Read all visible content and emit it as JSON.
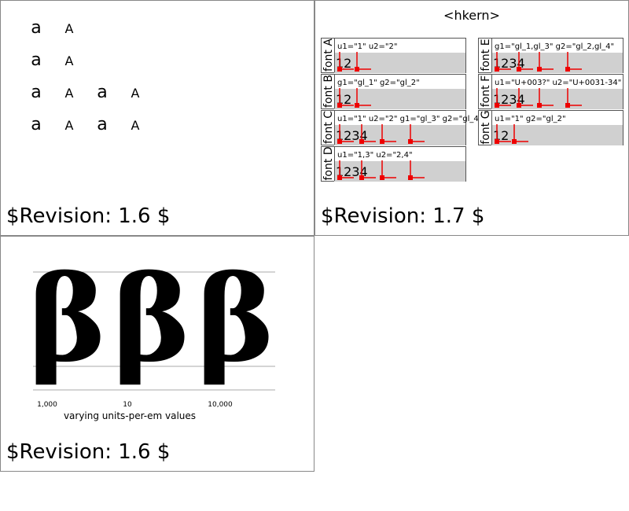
{
  "panels": [
    {
      "rows": [
        [
          "a",
          "A"
        ],
        [
          "a",
          "A"
        ],
        [
          "a",
          "A",
          "a",
          "A"
        ],
        [
          "a",
          "A",
          "a",
          "A"
        ]
      ],
      "revision": "$Revision: 1.6 $"
    },
    {
      "title": "<hkern>",
      "fonts": [
        {
          "name": "font A",
          "attrs": "u1=\"1\" u2=\"2\"",
          "sample": "12"
        },
        {
          "name": "font B",
          "attrs": "g1=\"gl_1\" g2=\"gl_2\"",
          "sample": "12"
        },
        {
          "name": "font C",
          "attrs": "u1=\"1\" u2=\"2\" g1=\"gl_3\" g2=\"gl_4\"",
          "sample": "1234"
        },
        {
          "name": "font D",
          "attrs": "u1=\"1,3\" u2=\"2,4\"",
          "sample": "1234"
        },
        {
          "name": "font E",
          "attrs": "g1=\"gl_1,gl_3\" g2=\"gl_2,gl_4\"",
          "sample": "1234"
        },
        {
          "name": "font F",
          "attrs": "u1=\"U+003?\" u2=\"U+0031-34\"",
          "sample": "1234"
        },
        {
          "name": "font G",
          "attrs": "u1=\"1\" g2=\"gl_2\"",
          "sample": "12"
        }
      ],
      "revision": "$Revision: 1.7 $"
    },
    {
      "glyphs": [
        "β",
        "β",
        "β"
      ],
      "labels": [
        "1,000",
        "10",
        "10,000"
      ],
      "caption": "varying units-per-em values",
      "revision": "$Revision: 1.6 $"
    }
  ]
}
